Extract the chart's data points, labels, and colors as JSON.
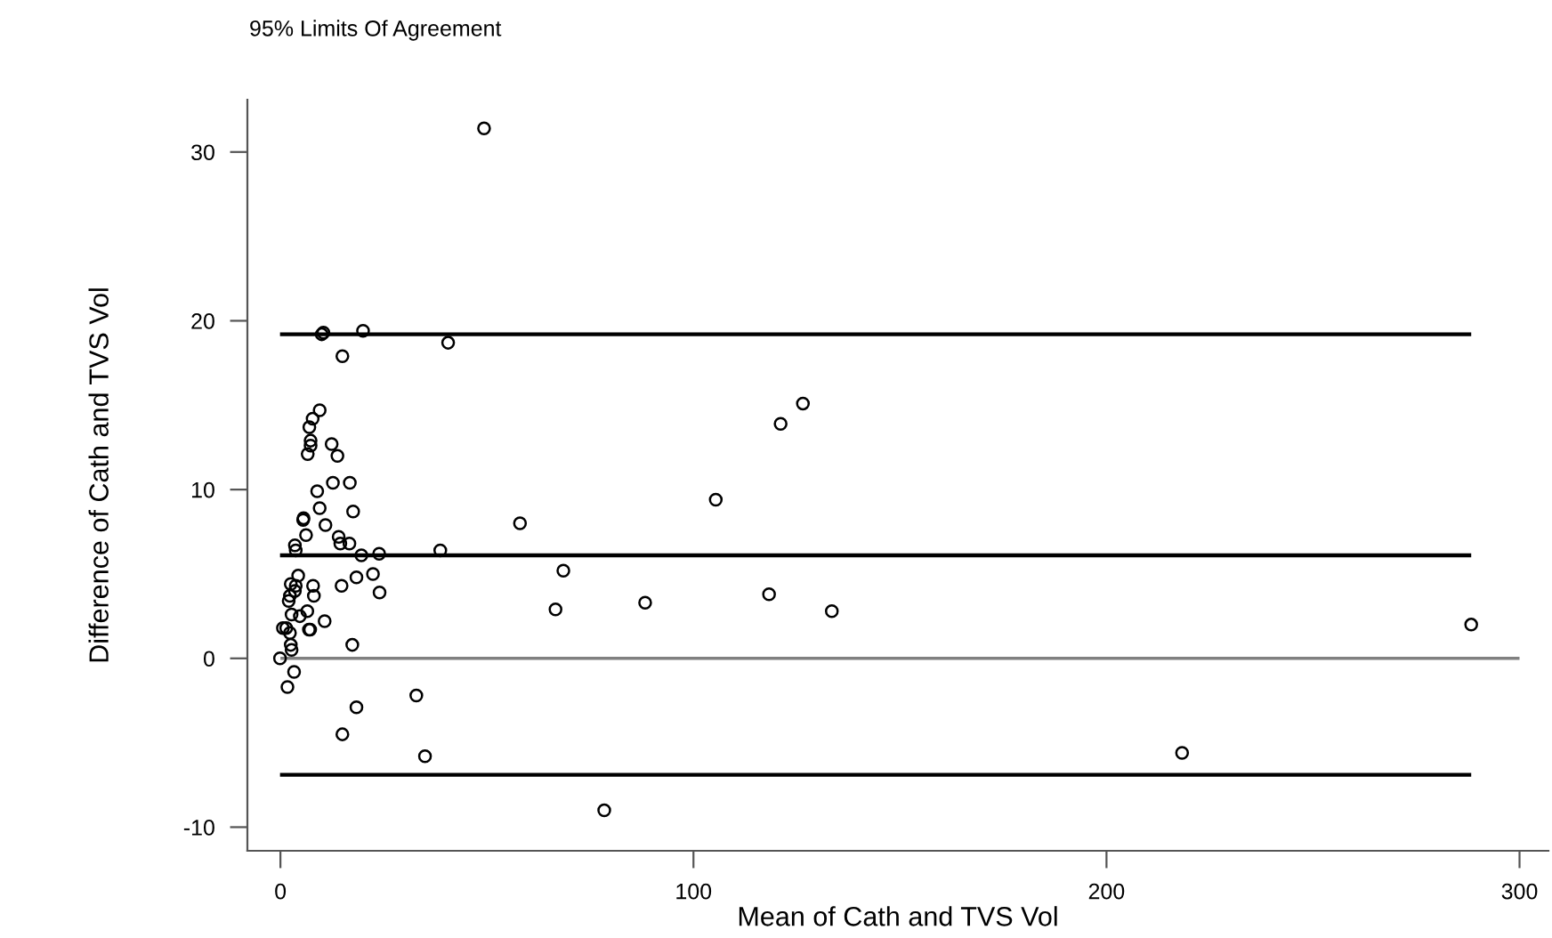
{
  "chart_data": {
    "type": "scatter",
    "title": "95% Limits Of Agreement",
    "xlabel": "Mean of Cath and TVS Vol",
    "ylabel": "Difference of Cath and TVS Vol",
    "series": [
      {
        "color": "#000000",
        "x": [
          10.0,
          10.4,
          20.0,
          40.6,
          15.0,
          9.5,
          7.8,
          7.0,
          7.3,
          7.3,
          6.6,
          12.4,
          13.8,
          8.9,
          12.7,
          16.8,
          9.5,
          17.6,
          5.6,
          5.5,
          10.9,
          6.2,
          3.5,
          3.7,
          14.1,
          14.5,
          16.7,
          19.6,
          23.9,
          38.7,
          4.3,
          2.5,
          3.7,
          7.9,
          3.5,
          14.8,
          18.4,
          22.4,
          8.1,
          24.0,
          2.3,
          2.0,
          6.5,
          2.7,
          4.7,
          10.7,
          0.6,
          1.4,
          6.9,
          7.2,
          2.3,
          17.4,
          2.5,
          2.7,
          -0.1,
          3.3,
          1.7,
          32.9,
          18.4,
          15.0,
          35.0,
          49.3,
          126.5,
          121.1,
          105.4,
          58.0,
          68.5,
          66.6,
          88.3,
          118.3,
          133.5,
          78.4,
          288.3,
          218.3
        ],
        "values": [
          19.2,
          19.3,
          19.4,
          18.7,
          17.9,
          14.7,
          14.2,
          13.7,
          12.9,
          12.6,
          12.1,
          12.7,
          12.0,
          9.9,
          10.4,
          10.4,
          8.9,
          8.7,
          8.3,
          8.2,
          7.9,
          7.3,
          6.7,
          6.4,
          7.2,
          6.8,
          6.8,
          6.1,
          6.2,
          6.4,
          4.9,
          4.4,
          4.3,
          4.3,
          4.0,
          4.3,
          4.8,
          5.0,
          3.7,
          3.9,
          3.7,
          3.4,
          2.8,
          2.6,
          2.5,
          2.2,
          1.8,
          1.8,
          1.7,
          1.7,
          1.5,
          0.8,
          0.8,
          0.5,
          0.0,
          -0.8,
          -1.7,
          -2.2,
          -2.9,
          -4.5,
          -5.8,
          31.4,
          15.1,
          13.9,
          9.4,
          8.0,
          5.2,
          2.9,
          3.3,
          3.8,
          2.8,
          -9.0,
          2.0,
          -5.6
        ]
      }
    ],
    "marker": "circle",
    "ref_lines": [
      {
        "axis": "y",
        "value": 19.2,
        "color": "#000000"
      },
      {
        "axis": "y",
        "value": 6.1,
        "color": "#000000"
      },
      {
        "axis": "y",
        "value": 0,
        "color": "#808080"
      },
      {
        "axis": "y",
        "value": -6.9,
        "color": "#000000"
      }
    ],
    "xlim": [
      -8,
      307
    ],
    "ylim": [
      -11.4,
      33.1
    ],
    "xticks": [
      0,
      100,
      200,
      300
    ],
    "yticks": [
      -10,
      0,
      10,
      20,
      30
    ],
    "grid": false,
    "legend": false
  }
}
